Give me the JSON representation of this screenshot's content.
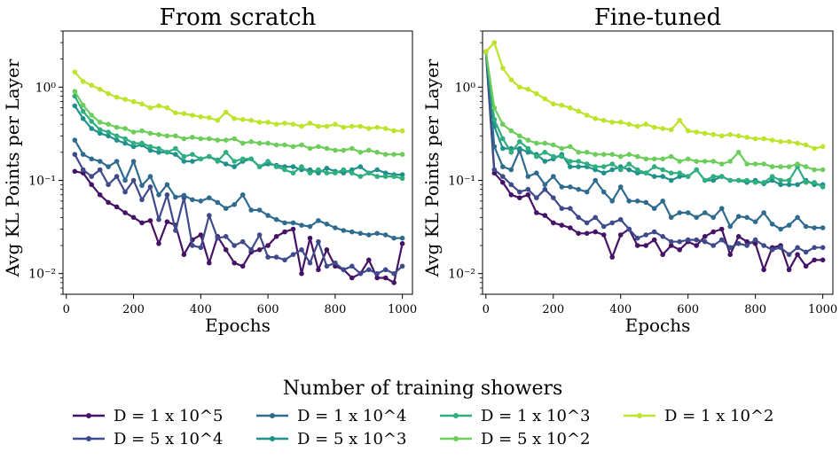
{
  "chart_data": {
    "type": "line",
    "legend": {
      "title": "Number of training showers",
      "entries": [
        {
          "label": "D = 1 x 10^5",
          "color": "#461266"
        },
        {
          "label": "D = 5 x 10^4",
          "color": "#3e4a89"
        },
        {
          "label": "D = 1 x 10^4",
          "color": "#2f6b8e"
        },
        {
          "label": "D = 5 x 10^3",
          "color": "#20908c"
        },
        {
          "label": "D = 1 x 10^3",
          "color": "#2fae7e"
        },
        {
          "label": "D = 5 x 10^2",
          "color": "#6ccd5a"
        },
        {
          "label": "D = 1 x 10^2",
          "color": "#bde32a"
        }
      ],
      "placement": "bottom-center"
    },
    "panels": [
      {
        "title": "From scratch",
        "xlabel": "Epochs",
        "ylabel": "Avg KL Points per Layer",
        "yscale": "log",
        "xlim": [
          -10,
          1030
        ],
        "ylim": [
          0.006,
          4
        ],
        "xticks": [
          0,
          200,
          400,
          600,
          800,
          1000
        ],
        "xtick_labels": [
          "0",
          "200",
          "400",
          "600",
          "800",
          "1000"
        ],
        "yticks": [
          0.01,
          0.1,
          1
        ],
        "ytick_labels": [
          "10⁻²",
          "10⁻¹",
          "10⁰"
        ],
        "x": [
          25,
          50,
          75,
          100,
          125,
          150,
          175,
          200,
          225,
          250,
          275,
          300,
          325,
          350,
          375,
          400,
          425,
          450,
          475,
          500,
          525,
          550,
          575,
          600,
          625,
          650,
          675,
          700,
          725,
          750,
          775,
          800,
          825,
          850,
          875,
          900,
          925,
          950,
          975,
          1000
        ],
        "series": [
          {
            "name": "D = 1 x 10^5",
            "values": [
              0.125,
              0.12,
              0.09,
              0.07,
              0.058,
              0.052,
              0.045,
              0.04,
              0.035,
              0.037,
              0.021,
              0.036,
              0.033,
              0.016,
              0.023,
              0.026,
              0.013,
              0.025,
              0.018,
              0.013,
              0.012,
              0.017,
              0.018,
              0.02,
              0.025,
              0.028,
              0.03,
              0.01,
              0.024,
              0.011,
              0.018,
              0.012,
              0.011,
              0.009,
              0.01,
              0.014,
              0.009,
              0.009,
              0.008,
              0.021
            ]
          },
          {
            "name": "D = 5 x 10^4",
            "values": [
              0.19,
              0.13,
              0.11,
              0.13,
              0.09,
              0.11,
              0.075,
              0.1,
              0.062,
              0.085,
              0.038,
              0.07,
              0.029,
              0.065,
              0.02,
              0.019,
              0.042,
              0.024,
              0.025,
              0.02,
              0.022,
              0.018,
              0.026,
              0.015,
              0.015,
              0.014,
              0.016,
              0.018,
              0.013,
              0.022,
              0.012,
              0.013,
              0.011,
              0.012,
              0.01,
              0.011,
              0.01,
              0.011,
              0.01,
              0.012
            ]
          },
          {
            "name": "D = 1 x 10^4",
            "values": [
              0.27,
              0.19,
              0.17,
              0.16,
              0.14,
              0.16,
              0.1,
              0.16,
              0.088,
              0.11,
              0.07,
              0.09,
              0.066,
              0.069,
              0.062,
              0.06,
              0.065,
              0.058,
              0.05,
              0.055,
              0.07,
              0.048,
              0.048,
              0.042,
              0.038,
              0.035,
              0.035,
              0.033,
              0.032,
              0.037,
              0.034,
              0.031,
              0.029,
              0.028,
              0.027,
              0.026,
              0.027,
              0.026,
              0.024,
              0.024
            ]
          },
          {
            "name": "D = 5 x 10^3",
            "values": [
              0.63,
              0.46,
              0.36,
              0.32,
              0.3,
              0.27,
              0.25,
              0.23,
              0.24,
              0.21,
              0.2,
              0.2,
              0.19,
              0.16,
              0.16,
              0.17,
              0.18,
              0.165,
              0.15,
              0.14,
              0.16,
              0.17,
              0.14,
              0.15,
              0.145,
              0.14,
              0.14,
              0.13,
              0.13,
              0.12,
              0.135,
              0.125,
              0.12,
              0.13,
              0.14,
              0.12,
              0.13,
              0.12,
              0.115,
              0.115
            ]
          },
          {
            "name": "D = 1 x 10^3",
            "values": [
              0.8,
              0.55,
              0.43,
              0.35,
              0.33,
              0.3,
              0.28,
              0.25,
              0.25,
              0.23,
              0.22,
              0.2,
              0.22,
              0.18,
              0.19,
              0.17,
              0.18,
              0.16,
              0.2,
              0.16,
              0.17,
              0.17,
              0.14,
              0.16,
              0.14,
              0.13,
              0.12,
              0.14,
              0.12,
              0.13,
              0.12,
              0.12,
              0.13,
              0.12,
              0.11,
              0.12,
              0.11,
              0.11,
              0.11,
              0.105
            ]
          },
          {
            "name": "D = 5 x 10^2",
            "values": [
              0.9,
              0.64,
              0.5,
              0.42,
              0.4,
              0.37,
              0.36,
              0.33,
              0.34,
              0.32,
              0.31,
              0.3,
              0.3,
              0.28,
              0.29,
              0.28,
              0.28,
              0.27,
              0.27,
              0.28,
              0.25,
              0.26,
              0.25,
              0.25,
              0.24,
              0.24,
              0.23,
              0.24,
              0.22,
              0.23,
              0.22,
              0.21,
              0.21,
              0.22,
              0.2,
              0.21,
              0.2,
              0.19,
              0.19,
              0.19
            ]
          },
          {
            "name": "D = 1 x 10^2",
            "values": [
              1.45,
              1.15,
              1.05,
              0.95,
              0.85,
              0.78,
              0.74,
              0.7,
              0.66,
              0.6,
              0.63,
              0.6,
              0.53,
              0.52,
              0.5,
              0.48,
              0.47,
              0.44,
              0.54,
              0.46,
              0.45,
              0.44,
              0.42,
              0.42,
              0.4,
              0.41,
              0.4,
              0.38,
              0.41,
              0.38,
              0.38,
              0.4,
              0.37,
              0.38,
              0.38,
              0.36,
              0.37,
              0.36,
              0.34,
              0.34
            ]
          }
        ]
      },
      {
        "title": "Fine-tuned",
        "xlabel": "Epochs",
        "ylabel": "Avg KL Points per Layer",
        "yscale": "log",
        "xlim": [
          -10,
          1030
        ],
        "ylim": [
          0.006,
          4
        ],
        "xticks": [
          0,
          200,
          400,
          600,
          800,
          1000
        ],
        "xtick_labels": [
          "0",
          "200",
          "400",
          "600",
          "800",
          "1000"
        ],
        "yticks": [
          0.01,
          0.1,
          1
        ],
        "ytick_labels": [
          "10⁻²",
          "10⁻¹",
          "10⁰"
        ],
        "x": [
          0,
          25,
          50,
          75,
          100,
          125,
          150,
          175,
          200,
          225,
          250,
          275,
          300,
          325,
          350,
          375,
          400,
          425,
          450,
          475,
          500,
          525,
          550,
          575,
          600,
          625,
          650,
          675,
          700,
          725,
          750,
          775,
          800,
          825,
          850,
          875,
          900,
          925,
          950,
          975,
          1000
        ],
        "series": [
          {
            "name": "D = 1 x 10^5",
            "values": [
              2.4,
              0.12,
              0.095,
              0.07,
              0.065,
              0.07,
              0.045,
              0.042,
              0.035,
              0.033,
              0.031,
              0.027,
              0.027,
              0.028,
              0.026,
              0.015,
              0.026,
              0.03,
              0.02,
              0.02,
              0.023,
              0.016,
              0.02,
              0.018,
              0.022,
              0.02,
              0.025,
              0.028,
              0.03,
              0.016,
              0.025,
              0.022,
              0.021,
              0.011,
              0.019,
              0.02,
              0.011,
              0.016,
              0.012,
              0.014,
              0.014
            ]
          },
          {
            "name": "D = 5 x 10^4",
            "values": [
              2.4,
              0.13,
              0.11,
              0.09,
              0.075,
              0.08,
              0.065,
              0.08,
              0.065,
              0.05,
              0.05,
              0.04,
              0.035,
              0.04,
              0.032,
              0.035,
              0.038,
              0.03,
              0.024,
              0.026,
              0.028,
              0.025,
              0.022,
              0.022,
              0.023,
              0.023,
              0.022,
              0.02,
              0.023,
              0.019,
              0.021,
              0.02,
              0.023,
              0.02,
              0.018,
              0.019,
              0.016,
              0.019,
              0.017,
              0.019,
              0.019
            ]
          },
          {
            "name": "D = 1 x 10^4",
            "values": [
              2.4,
              0.23,
              0.14,
              0.13,
              0.21,
              0.11,
              0.12,
              0.09,
              0.11,
              0.085,
              0.085,
              0.08,
              0.075,
              0.1,
              0.075,
              0.06,
              0.085,
              0.06,
              0.06,
              0.058,
              0.05,
              0.06,
              0.04,
              0.045,
              0.045,
              0.04,
              0.045,
              0.04,
              0.05,
              0.032,
              0.041,
              0.04,
              0.036,
              0.045,
              0.034,
              0.03,
              0.033,
              0.04,
              0.032,
              0.031,
              0.031
            ]
          },
          {
            "name": "D = 5 x 10^3",
            "values": [
              2.4,
              0.38,
              0.22,
              0.22,
              0.22,
              0.2,
              0.19,
              0.16,
              0.17,
              0.19,
              0.14,
              0.14,
              0.14,
              0.13,
              0.12,
              0.13,
              0.14,
              0.13,
              0.12,
              0.12,
              0.11,
              0.11,
              0.1,
              0.11,
              0.11,
              0.13,
              0.1,
              0.1,
              0.11,
              0.1,
              0.1,
              0.095,
              0.1,
              0.092,
              0.1,
              0.09,
              0.09,
              0.09,
              0.1,
              0.09,
              0.09
            ]
          },
          {
            "name": "D = 1 x 10^3",
            "values": [
              2.4,
              0.45,
              0.28,
              0.2,
              0.26,
              0.22,
              0.18,
              0.2,
              0.18,
              0.18,
              0.16,
              0.16,
              0.15,
              0.14,
              0.14,
              0.15,
              0.13,
              0.15,
              0.13,
              0.12,
              0.14,
              0.13,
              0.12,
              0.12,
              0.11,
              0.13,
              0.1,
              0.11,
              0.11,
              0.1,
              0.1,
              0.1,
              0.095,
              0.095,
              0.11,
              0.1,
              0.1,
              0.14,
              0.095,
              0.095,
              0.085
            ]
          },
          {
            "name": "D = 5 x 10^2",
            "values": [
              2.4,
              0.6,
              0.4,
              0.34,
              0.3,
              0.27,
              0.25,
              0.25,
              0.24,
              0.22,
              0.23,
              0.2,
              0.2,
              0.19,
              0.19,
              0.19,
              0.18,
              0.19,
              0.18,
              0.17,
              0.17,
              0.17,
              0.18,
              0.16,
              0.17,
              0.16,
              0.16,
              0.16,
              0.15,
              0.16,
              0.2,
              0.15,
              0.15,
              0.15,
              0.14,
              0.14,
              0.14,
              0.15,
              0.14,
              0.13,
              0.13
            ]
          },
          {
            "name": "D = 1 x 10^2",
            "values": [
              2.4,
              3.0,
              1.6,
              1.2,
              1.0,
              0.95,
              0.85,
              0.75,
              0.66,
              0.64,
              0.6,
              0.55,
              0.5,
              0.46,
              0.44,
              0.42,
              0.42,
              0.4,
              0.38,
              0.4,
              0.37,
              0.36,
              0.35,
              0.44,
              0.34,
              0.33,
              0.32,
              0.31,
              0.3,
              0.31,
              0.3,
              0.29,
              0.28,
              0.28,
              0.27,
              0.26,
              0.26,
              0.25,
              0.24,
              0.22,
              0.23
            ]
          }
        ]
      }
    ]
  }
}
